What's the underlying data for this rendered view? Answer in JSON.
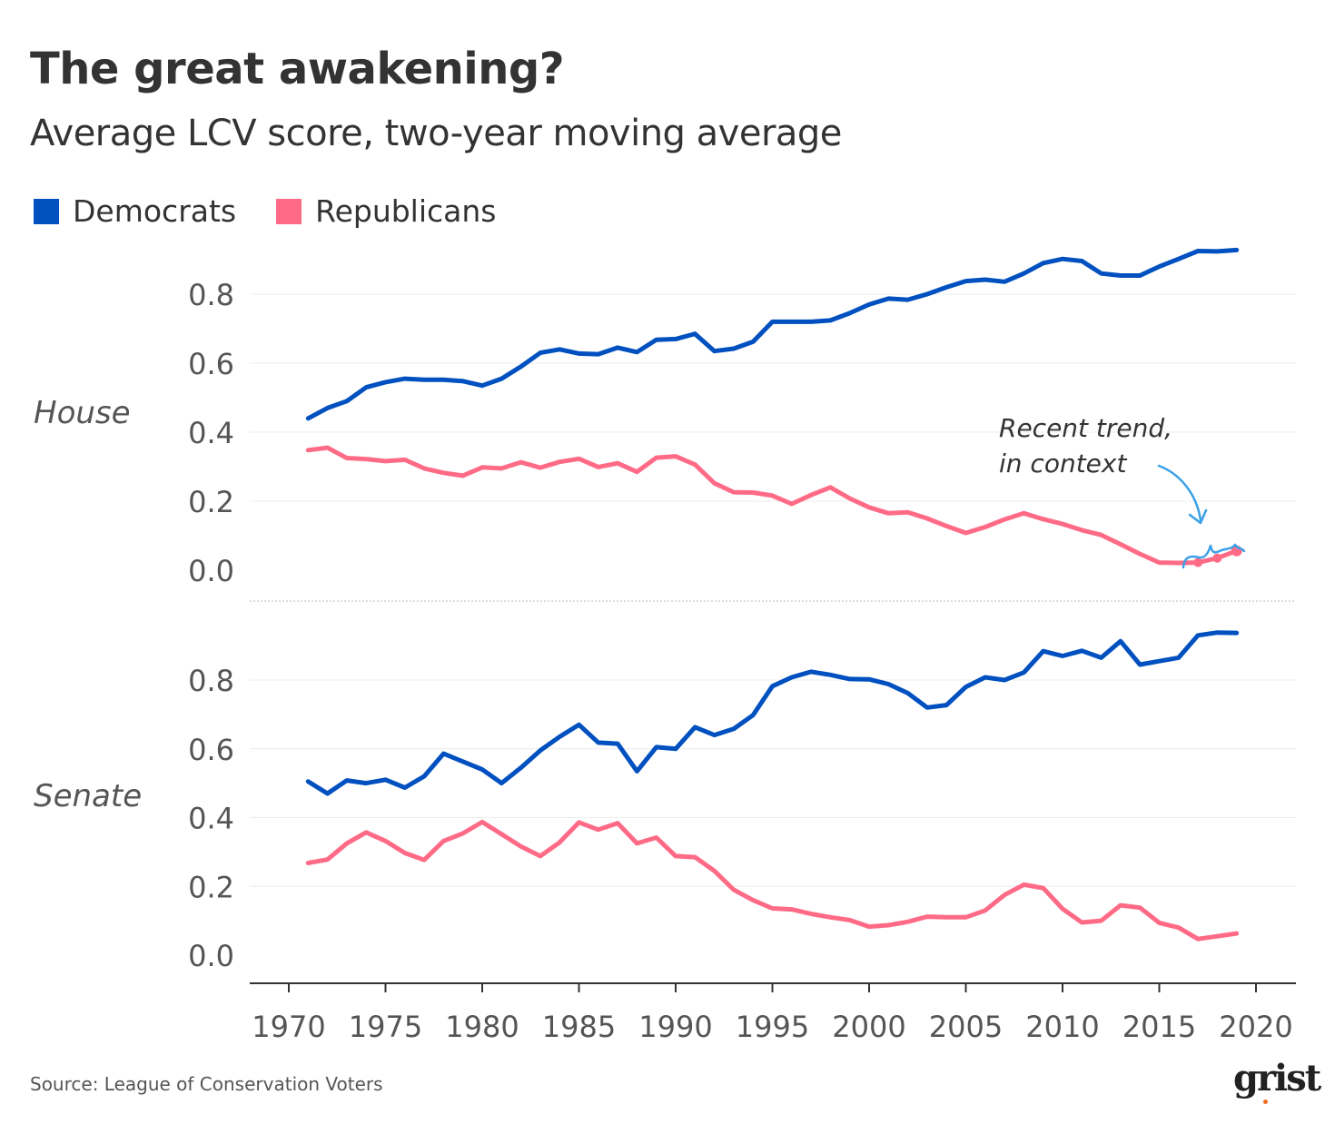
{
  "title": "The great awakening?",
  "subtitle": "Average LCV score, two-year moving average",
  "legend": [
    {
      "label": "Democrats",
      "color": "#0050c0"
    },
    {
      "label": "Republicans",
      "color": "#ff6b86"
    }
  ],
  "source": "Source: League of Conservation Voters",
  "logo": "grist",
  "annotation": {
    "line1": "Recent trend,",
    "line2": "in context",
    "color": "#3aa0e8"
  },
  "chart_data": [
    {
      "type": "line",
      "panel": "House",
      "ylim": [
        -0.05,
        0.95
      ],
      "yticks": [
        "0.0",
        "0.2",
        "0.4",
        "0.6",
        "0.8"
      ],
      "x": [
        1971,
        1972,
        1973,
        1974,
        1975,
        1976,
        1977,
        1978,
        1979,
        1980,
        1981,
        1982,
        1983,
        1984,
        1985,
        1986,
        1987,
        1988,
        1989,
        1990,
        1991,
        1992,
        1993,
        1994,
        1995,
        1996,
        1997,
        1998,
        1999,
        2000,
        2001,
        2002,
        2003,
        2004,
        2005,
        2006,
        2007,
        2008,
        2009,
        2010,
        2011,
        2012,
        2013,
        2014,
        2015,
        2016,
        2017,
        2018,
        2019
      ],
      "series": [
        {
          "name": "Democrats",
          "color": "#0050c0",
          "values": [
            0.44,
            0.47,
            0.49,
            0.53,
            0.545,
            0.555,
            0.552,
            0.552,
            0.548,
            0.535,
            0.555,
            0.59,
            0.63,
            0.64,
            0.628,
            0.626,
            0.645,
            0.632,
            0.668,
            0.67,
            0.685,
            0.635,
            0.642,
            0.662,
            0.72,
            0.72,
            0.72,
            0.724,
            0.745,
            0.77,
            0.787,
            0.784,
            0.8,
            0.82,
            0.838,
            0.842,
            0.836,
            0.86,
            0.89,
            0.902,
            0.896,
            0.86,
            0.854,
            0.854,
            0.88,
            0.902,
            0.925,
            0.924,
            0.928
          ]
        },
        {
          "name": "Republicans",
          "color": "#ff6b86",
          "values": [
            0.348,
            0.355,
            0.325,
            0.322,
            0.316,
            0.32,
            0.295,
            0.282,
            0.274,
            0.298,
            0.295,
            0.313,
            0.297,
            0.314,
            0.323,
            0.299,
            0.31,
            0.285,
            0.326,
            0.33,
            0.306,
            0.252,
            0.226,
            0.225,
            0.216,
            0.192,
            0.218,
            0.24,
            0.208,
            0.182,
            0.165,
            0.168,
            0.15,
            0.128,
            0.108,
            0.125,
            0.147,
            0.165,
            0.148,
            0.134,
            0.116,
            0.102,
            0.075,
            0.047,
            0.022,
            0.021,
            0.022,
            0.035,
            0.056
          ]
        }
      ],
      "highlight_points": [
        {
          "series": "Republicans",
          "x": [
            2017,
            2018,
            2019
          ]
        }
      ]
    },
    {
      "type": "line",
      "panel": "Senate",
      "ylim": [
        -0.05,
        0.95
      ],
      "yticks": [
        "0.0",
        "0.2",
        "0.4",
        "0.6",
        "0.8"
      ],
      "x": [
        1971,
        1972,
        1973,
        1974,
        1975,
        1976,
        1977,
        1978,
        1979,
        1980,
        1981,
        1982,
        1983,
        1984,
        1985,
        1986,
        1987,
        1988,
        1989,
        1990,
        1991,
        1992,
        1993,
        1994,
        1995,
        1996,
        1997,
        1998,
        1999,
        2000,
        2001,
        2002,
        2003,
        2004,
        2005,
        2006,
        2007,
        2008,
        2009,
        2010,
        2011,
        2012,
        2013,
        2014,
        2015,
        2016,
        2017,
        2018,
        2019
      ],
      "series": [
        {
          "name": "Democrats",
          "color": "#0050c0",
          "values": [
            0.505,
            0.47,
            0.508,
            0.5,
            0.51,
            0.487,
            0.52,
            0.586,
            0.563,
            0.54,
            0.5,
            0.545,
            0.595,
            0.635,
            0.67,
            0.618,
            0.615,
            0.535,
            0.605,
            0.6,
            0.663,
            0.64,
            0.658,
            0.698,
            0.782,
            0.808,
            0.824,
            0.815,
            0.803,
            0.802,
            0.788,
            0.762,
            0.72,
            0.727,
            0.78,
            0.808,
            0.8,
            0.822,
            0.884,
            0.87,
            0.885,
            0.865,
            0.913,
            0.845,
            0.855,
            0.865,
            0.93,
            0.938,
            0.937
          ]
        },
        {
          "name": "Republicans",
          "color": "#ff6b86",
          "values": [
            0.268,
            0.278,
            0.325,
            0.357,
            0.332,
            0.297,
            0.277,
            0.332,
            0.354,
            0.387,
            0.352,
            0.316,
            0.288,
            0.328,
            0.386,
            0.365,
            0.384,
            0.325,
            0.342,
            0.288,
            0.285,
            0.245,
            0.19,
            0.16,
            0.136,
            0.133,
            0.12,
            0.11,
            0.102,
            0.083,
            0.087,
            0.097,
            0.112,
            0.11,
            0.11,
            0.13,
            0.175,
            0.205,
            0.195,
            0.135,
            0.095,
            0.1,
            0.145,
            0.138,
            0.094,
            0.08,
            0.047,
            0.055,
            0.063
          ]
        }
      ]
    }
  ],
  "x_axis": {
    "ticks": [
      "1970",
      "1975",
      "1980",
      "1985",
      "1990",
      "1995",
      "2000",
      "2005",
      "2010",
      "2015",
      "2020"
    ]
  }
}
